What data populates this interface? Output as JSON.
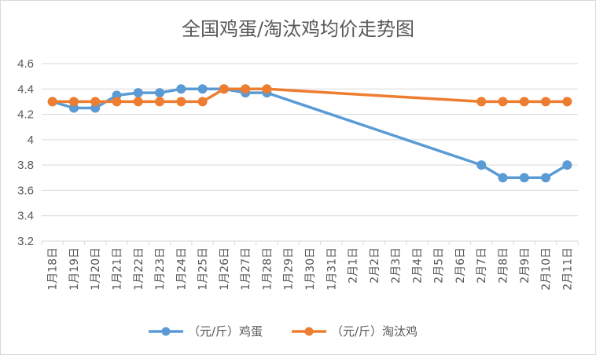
{
  "chart_data": {
    "type": "line",
    "title": "全国鸡蛋/淘汰鸡均价走势图",
    "categories": [
      "1月18日",
      "1月19日",
      "1月20日",
      "1月21日",
      "1月22日",
      "1月23日",
      "1月24日",
      "1月25日",
      "1月26日",
      "1月27日",
      "1月28日",
      "1月29日",
      "1月30日",
      "1月31日",
      "2月1日",
      "2月2日",
      "2月3日",
      "2月4日",
      "2月5日",
      "2月6日",
      "2月7日",
      "2月8日",
      "2月9日",
      "2月10日",
      "2月11日"
    ],
    "series": [
      {
        "name": "（元/斤）鸡蛋",
        "color": "#5b9bd5",
        "values": [
          4.3,
          4.25,
          4.25,
          4.35,
          4.37,
          4.37,
          4.4,
          4.4,
          4.4,
          4.37,
          4.37,
          null,
          null,
          null,
          null,
          null,
          null,
          null,
          null,
          null,
          3.8,
          3.7,
          3.7,
          3.7,
          3.8
        ]
      },
      {
        "name": "（元/斤）淘汰鸡",
        "color": "#ed7d31",
        "values": [
          4.3,
          4.3,
          4.3,
          4.3,
          4.3,
          4.3,
          4.3,
          4.3,
          4.4,
          4.4,
          4.4,
          null,
          null,
          null,
          null,
          null,
          null,
          null,
          null,
          null,
          4.3,
          4.3,
          4.3,
          4.3,
          4.3
        ]
      }
    ],
    "ylim": [
      3.2,
      4.6
    ],
    "yticks": [
      "3.2",
      "3.4",
      "3.6",
      "3.8",
      "4",
      "4.2",
      "4.4",
      "4.6"
    ],
    "grid": true,
    "legend": "bottom"
  }
}
